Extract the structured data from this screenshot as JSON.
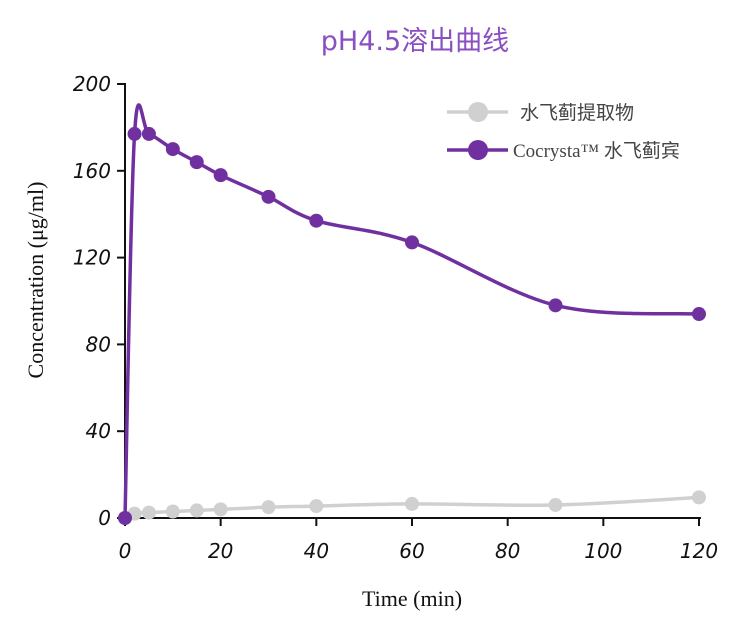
{
  "chart_data": {
    "type": "line",
    "title": "pH4.5溶出曲线",
    "xlabel": "Time (min)",
    "ylabel": "Concentration (μg/ml)",
    "xlim": [
      0,
      120
    ],
    "ylim": [
      0,
      200
    ],
    "xticks": [
      0,
      20,
      40,
      60,
      80,
      100,
      120
    ],
    "yticks": [
      0,
      40,
      80,
      120,
      160,
      200
    ],
    "grid": false,
    "legend_position": "top-right",
    "series": [
      {
        "name": "水飞蓟提取物",
        "color": "#d0d0d0",
        "x": [
          0,
          2,
          5,
          10,
          15,
          20,
          30,
          40,
          60,
          90,
          120
        ],
        "y": [
          0,
          2,
          2.5,
          3,
          3.5,
          4,
          5,
          5.5,
          6.5,
          6,
          9.5
        ]
      },
      {
        "name": "Cocrysta™ 水飞蓟宾",
        "color": "#7030a0",
        "x": [
          0,
          2,
          5,
          10,
          15,
          20,
          30,
          40,
          60,
          90,
          120
        ],
        "y": [
          0,
          177,
          177,
          170,
          164,
          158,
          148,
          137,
          127,
          98,
          94
        ]
      }
    ]
  }
}
